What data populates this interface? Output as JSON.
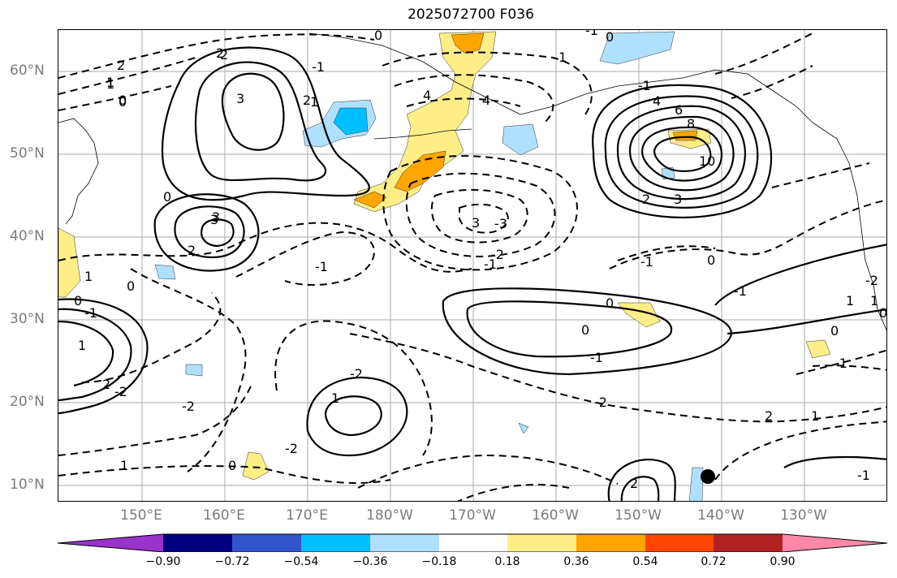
{
  "title": "2025072700 F036",
  "lat_ticks": [
    "60°N",
    "50°N",
    "40°N",
    "30°N",
    "20°N",
    "10°N"
  ],
  "lon_ticks": [
    "150°E",
    "160°E",
    "170°E",
    "180°W",
    "170°W",
    "160°W",
    "150°W",
    "140°W",
    "130°W"
  ],
  "map": {
    "lon_range": [
      140,
      240
    ],
    "lat_range": [
      8,
      65
    ],
    "contour_labels": [
      "2",
      "1",
      "0",
      "2",
      "3",
      "3",
      "0",
      "2",
      "3",
      "2",
      "1",
      "0",
      "4",
      "3",
      "4",
      "2",
      "1",
      "0",
      "-1",
      "0",
      "1",
      "2",
      "0",
      "8",
      "6",
      "4",
      "10",
      "2",
      "3",
      "0",
      "-1",
      "-1",
      "1",
      "0",
      "-1",
      "0",
      "-1",
      "2",
      "1",
      "-2",
      "1",
      "0",
      "-2",
      "1",
      "-2",
      "-2",
      "-1",
      "0",
      "-1",
      "1",
      "-1",
      "-2",
      "1",
      "0",
      "1",
      "2",
      "-1",
      "0",
      "-1",
      "1",
      "-2",
      "-2",
      "-3",
      "-1"
    ],
    "marker": {
      "lon": -140.5,
      "lat": 11.2
    }
  },
  "colorbar": {
    "colors": [
      "#9933cc",
      "#000080",
      "#3355cc",
      "#00bfff",
      "#b0e0ff",
      "#ffffff",
      "#ffee88",
      "#ffa500",
      "#ff4500",
      "#b22222",
      "#ff88aa"
    ],
    "tick_labels": [
      "−0.90",
      "−0.72",
      "−0.54",
      "−0.36",
      "−0.18",
      "0.18",
      "0.36",
      "0.54",
      "0.72",
      "0.90"
    ]
  }
}
